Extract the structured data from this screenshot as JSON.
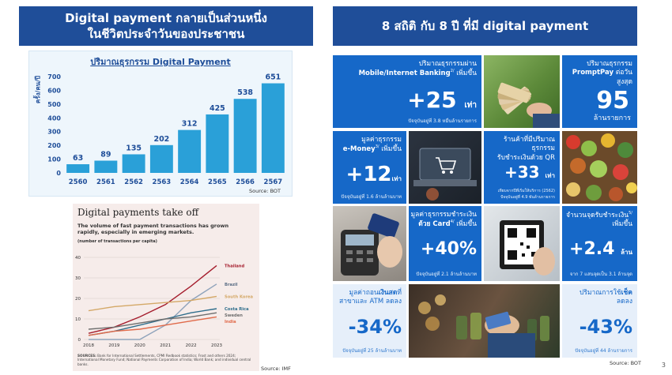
{
  "left_banner": {
    "line1": "Digital payment กลายเป็นส่วนหนึ่ง",
    "line2": "ในชีวิตประจำวันของประชาชน"
  },
  "right_banner": {
    "title": "8 สถิติ กับ 8 ปี ที่มี digital payment"
  },
  "bar_chart": {
    "title": "ปริมาณธุรกรรม Digital Payment",
    "ylabel": "ครั้ง/คน/ปี",
    "source": "Source: BOT"
  },
  "line_chart": {
    "title": "Digital payments take off",
    "subtitle": "The volume of fast payment transactions has grown rapidly, especially in emerging markets.",
    "unit_note": "(number of transactions per capita)",
    "sources_label": "SOURCES:",
    "sources_text": "Bank for International Settlements, CPMI Redbook statistics; Frost and others 2024; International Monetary Fund; National Payments Corporation of India; World Bank; and individual central banks.",
    "source_right": "Source: IMF"
  },
  "chart_data": [
    {
      "type": "bar",
      "title": "ปริมาณธุรกรรม Digital Payment",
      "ylabel": "ครั้ง/คน/ปี",
      "categories": [
        "2560",
        "2561",
        "2562",
        "2563",
        "2564",
        "2565",
        "2566",
        "2567"
      ],
      "values": [
        63,
        89,
        135,
        202,
        312,
        425,
        538,
        651
      ],
      "ylim": [
        0,
        700
      ],
      "yticks": [
        0,
        100,
        200,
        300,
        400,
        500,
        600,
        700
      ],
      "color": "#2aa0d8"
    },
    {
      "type": "line",
      "title": "Digital payments take off",
      "x": [
        "2018",
        "2019",
        "2020",
        "2021",
        "2022",
        "2023"
      ],
      "ylim": [
        0,
        40
      ],
      "yticks": [
        0,
        10,
        20,
        30,
        40
      ],
      "series": [
        {
          "name": "Thailand",
          "color": "#a51d2d",
          "values": [
            3,
            6,
            11,
            17,
            26,
            36
          ]
        },
        {
          "name": "Brazil",
          "color": "#8fa3bb",
          "values": [
            0,
            0,
            0,
            7,
            19,
            27
          ]
        },
        {
          "name": "South Korea",
          "color": "#d4a867",
          "values": [
            14,
            16,
            17,
            18,
            19,
            21
          ]
        },
        {
          "name": "Costa Rica",
          "color": "#2f6e8c",
          "values": [
            2,
            4,
            7,
            10,
            13,
            15
          ]
        },
        {
          "name": "Sweden",
          "color": "#6e6e6e",
          "values": [
            5,
            6,
            8,
            10,
            11,
            13
          ]
        },
        {
          "name": "India",
          "color": "#e06a4a",
          "values": [
            2,
            4,
            5,
            7,
            9,
            11
          ]
        }
      ]
    }
  ],
  "stats": {
    "mobile": {
      "label_pre": "ปริมาณธุรกรรมผ่าน",
      "label_main": "Mobile/Internet Banking",
      "sup": "2/",
      "label_post": "เพิ่มขึ้น",
      "value": "+25",
      "unit": "เท่า",
      "note": "ปัจจุบันอยู่ที่ 3.8 หมื่นล้านรายการ"
    },
    "promptpay": {
      "label_pre": "ปริมาณธุรกรรม",
      "label_main": "PromptPay",
      "label_post": "ต่อวันสูงสุด",
      "value": "95",
      "unit": "ล้านรายการ"
    },
    "emoney": {
      "label_pre": "มูลค่าธุรกรรม",
      "label_main": "e-Money",
      "sup": "3/",
      "label_post": "เพิ่มขึ้น",
      "value": "+12",
      "unit": "เท่า",
      "note": "ปัจจุบันอยู่ที่ 1.6 ล้านล้านบาท"
    },
    "qr": {
      "label_pre": "ร้านค้าที่มีปริมาณธุรกรรม",
      "label_post": "รับชำระเงินด้วย QR",
      "value": "+33",
      "unit": "เท่า",
      "note1": "เทียบจากปีที่เริ่มให้บริการ (2562)",
      "note2": "ปัจจุบันอยู่ที่ 4.9 พันล้านรายการ"
    },
    "card": {
      "label_pre": "มูลค่าธุรกรรมชำระเงิน",
      "label_main": "ด้วย Card",
      "sup": "4/",
      "label_post": "เพิ่มขึ้น",
      "value": "+40%",
      "note": "ปัจจุบันอยู่ที่ 2.1 ล้านล้านบาท"
    },
    "edc": {
      "label_pre": "จำนวนจุดรับชำระเงิน",
      "sup": "5/",
      "label_post": "เพิ่มขึ้น",
      "value": "+2.4",
      "unit": "ล้าน",
      "note": "จาก 7 แสนจุดเป็น 3.1 ล้านจุด"
    },
    "cash": {
      "label_pre": "มูลค่าถอน",
      "label_main": "เงินสด",
      "label_post": "ที่",
      "label_line2": "สาขาและ ATM ลดลง",
      "value": "-34%",
      "note": "ปัจจุบันอยู่ที่ 25 ล้านล้านบาท"
    },
    "cheque": {
      "label_pre": "ปริมาณการใช้",
      "label_main": "เช็ค",
      "label_line2": "ลดลง",
      "value": "-43%",
      "note": "ปัจจุบันอยู่ที่ 44 ล้านรายการ"
    }
  },
  "source_bot_right": "Source: BOT",
  "page_number": "3"
}
